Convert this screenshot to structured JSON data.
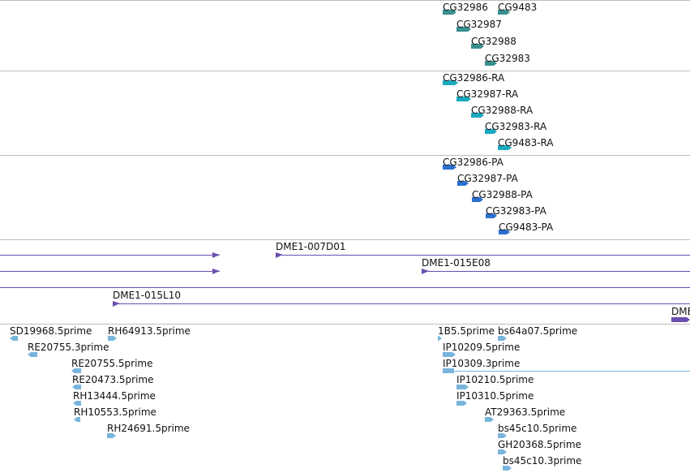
{
  "colors": {
    "gene": "#3a8f8f",
    "transcript": "#1aaabf",
    "protein": "#2c6fcf",
    "clone": "#6a4fb0",
    "est": "#78b4dc",
    "divider": "#bdbdbd"
  },
  "tracks": {
    "genes": [
      {
        "label": "CG32986",
        "strand": "+"
      },
      {
        "label": "CG9483",
        "strand": "+"
      },
      {
        "label": "CG32987",
        "strand": "+"
      },
      {
        "label": "CG32988",
        "strand": "+"
      },
      {
        "label": "CG32983",
        "strand": "+"
      }
    ],
    "transcripts": [
      {
        "label": "CG32986-RA",
        "strand": "+"
      },
      {
        "label": "CG32987-RA",
        "strand": "+"
      },
      {
        "label": "CG32988-RA",
        "strand": "+"
      },
      {
        "label": "CG32983-RA",
        "strand": "+"
      },
      {
        "label": "CG9483-RA",
        "strand": "+"
      }
    ],
    "proteins": [
      {
        "label": "CG32986-PA",
        "strand": "+"
      },
      {
        "label": "CG32987-PA",
        "strand": "+"
      },
      {
        "label": "CG32988-PA",
        "strand": "+"
      },
      {
        "label": "CG32983-PA",
        "strand": "+"
      },
      {
        "label": "CG9483-PA",
        "strand": "+"
      }
    ],
    "clones": [
      {
        "label": "",
        "strand": "+"
      },
      {
        "label": "DME1-007D01",
        "strand": "+"
      },
      {
        "label": "",
        "strand": "+"
      },
      {
        "label": "DME1-015E08",
        "strand": "+"
      },
      {
        "label": "",
        "strand": "+"
      },
      {
        "label": "DME1-015L10",
        "strand": "+"
      },
      {
        "label": "DME",
        "strand": "+"
      }
    ],
    "ests": [
      {
        "label": "SD19968.5prime",
        "strand": "-"
      },
      {
        "label": "RH64913.5prime",
        "strand": "+"
      },
      {
        "label": "RE20755.3prime",
        "strand": "-"
      },
      {
        "label": "RE20755.5prime",
        "strand": "-"
      },
      {
        "label": "RE20473.5prime",
        "strand": "-"
      },
      {
        "label": "RH13444.5prime",
        "strand": "-"
      },
      {
        "label": "RH10553.5prime",
        "strand": "-"
      },
      {
        "label": "RH24691.5prime",
        "strand": "+"
      },
      {
        "label": "1B5.5prime",
        "strand": "+"
      },
      {
        "label": "bs64a07.5prime",
        "strand": "+"
      },
      {
        "label": "IP10209.5prime",
        "strand": "+"
      },
      {
        "label": "IP10309.3prime",
        "strand": "+"
      },
      {
        "label": "IP10210.5prime",
        "strand": "+"
      },
      {
        "label": "IP10310.5prime",
        "strand": "+"
      },
      {
        "label": "AT29363.5prime",
        "strand": "+"
      },
      {
        "label": "bs45c10.5prime",
        "strand": "+"
      },
      {
        "label": "GH20368.5prime",
        "strand": "+"
      },
      {
        "label": "bs45c10.3prime",
        "strand": "+"
      }
    ]
  }
}
